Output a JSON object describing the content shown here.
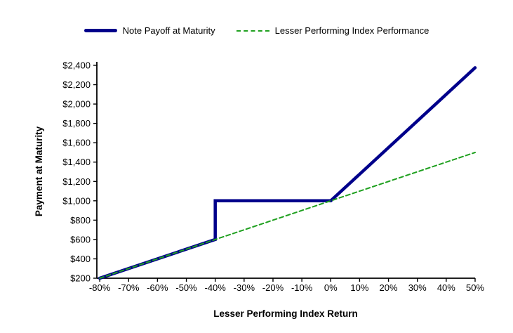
{
  "chart_data": {
    "type": "line",
    "title": "",
    "xlabel": "Lesser Performing Index Return",
    "ylabel": "Payment at Maturity",
    "xlim": [
      -81,
      50
    ],
    "ylim": [
      200,
      2400
    ],
    "grid": false,
    "legend_position": "top-center",
    "background": "#FFFFFF",
    "axis_color": "#000000",
    "text_color": "#000000",
    "x_ticks": [
      {
        "value": -80,
        "label": "-80%"
      },
      {
        "value": -70,
        "label": "-70%"
      },
      {
        "value": -60,
        "label": "-60%"
      },
      {
        "value": -50,
        "label": "-50%"
      },
      {
        "value": -40,
        "label": "-40%"
      },
      {
        "value": -30,
        "label": "-30%"
      },
      {
        "value": -20,
        "label": "-20%"
      },
      {
        "value": -10,
        "label": "-10%"
      },
      {
        "value": 0,
        "label": "0%"
      },
      {
        "value": 10,
        "label": "10%"
      },
      {
        "value": 20,
        "label": "20%"
      },
      {
        "value": 30,
        "label": "30%"
      },
      {
        "value": 40,
        "label": "40%"
      },
      {
        "value": 50,
        "label": "50%"
      }
    ],
    "y_ticks": [
      {
        "value": 200,
        "label": "$200"
      },
      {
        "value": 400,
        "label": "$400"
      },
      {
        "value": 600,
        "label": "$600"
      },
      {
        "value": 800,
        "label": "$800"
      },
      {
        "value": 1000,
        "label": "$1,000"
      },
      {
        "value": 1200,
        "label": "$1,200"
      },
      {
        "value": 1400,
        "label": "$1,400"
      },
      {
        "value": 1600,
        "label": "$1,600"
      },
      {
        "value": 1800,
        "label": "$1,800"
      },
      {
        "value": 2000,
        "label": "$2,000"
      },
      {
        "value": 2200,
        "label": "$2,200"
      },
      {
        "value": 2400,
        "label": "$2,400"
      }
    ],
    "series": [
      {
        "name": "Note Payoff at Maturity",
        "color": "#00008B",
        "line_style": "solid",
        "stroke_width": 4.5,
        "points": [
          [
            -80,
            200
          ],
          [
            -40,
            600
          ],
          [
            -40,
            1000
          ],
          [
            0,
            1000
          ],
          [
            50,
            2375
          ]
        ]
      },
      {
        "name": "Lesser Performing Index Performance",
        "color": "#1FA01F",
        "line_style": "dashed",
        "stroke_width": 2,
        "points": [
          [
            -80,
            200
          ],
          [
            0,
            1000
          ],
          [
            50,
            1500
          ]
        ]
      }
    ]
  }
}
